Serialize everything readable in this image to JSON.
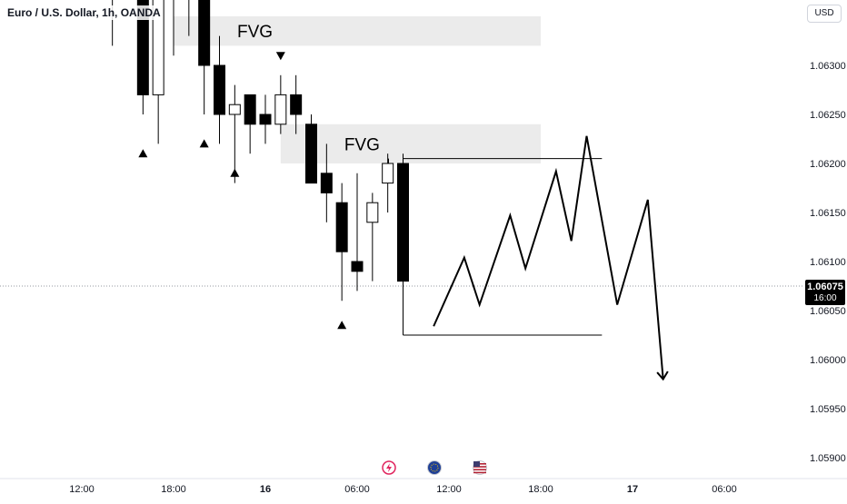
{
  "header": {
    "symbol": "Euro / U.S. Dollar, 1h, OANDA",
    "currency_button": "USD"
  },
  "price_badge": {
    "price": "1.06075",
    "time": "16:00"
  },
  "event_icons": [
    {
      "name": "lightning-icon",
      "color": "#e0245e"
    },
    {
      "name": "eu-flag-icon",
      "color": "#1e3f96"
    },
    {
      "name": "us-flag-icon",
      "color": "#b22234"
    }
  ],
  "chart_data": {
    "type": "candlestick",
    "ylim": [
      1.0588,
      1.0643
    ],
    "y_ticks": [
      "1.06300",
      "1.06250",
      "1.06200",
      "1.06150",
      "1.06100",
      "1.06050",
      "1.06000",
      "1.05950",
      "1.05900"
    ],
    "y_tick_values": [
      1.063,
      1.0625,
      1.062,
      1.0615,
      1.061,
      1.0605,
      1.06,
      1.0595,
      1.059
    ],
    "x_ticks": [
      {
        "label": "12:00",
        "hour": 12,
        "bold": false
      },
      {
        "label": "18:00",
        "hour": 18,
        "bold": false
      },
      {
        "label": "16",
        "hour": 24,
        "bold": true
      },
      {
        "label": "06:00",
        "hour": 30,
        "bold": false
      },
      {
        "label": "12:00",
        "hour": 36,
        "bold": false
      },
      {
        "label": "18:00",
        "hour": 42,
        "bold": false
      },
      {
        "label": "17",
        "hour": 48,
        "bold": true
      },
      {
        "label": "06:00",
        "hour": 54,
        "bold": false
      }
    ],
    "candles": [
      {
        "hour": 14,
        "open": 1.0643,
        "high": 1.0643,
        "low": 1.0632,
        "close": 1.0643
      },
      {
        "hour": 16,
        "open": 1.0643,
        "high": 1.0643,
        "low": 1.0625,
        "close": 1.0627
      },
      {
        "hour": 17,
        "open": 1.0627,
        "high": 1.0643,
        "low": 1.0622,
        "close": 1.0643
      },
      {
        "hour": 18,
        "open": 1.0643,
        "high": 1.0643,
        "low": 1.0631,
        "close": 1.0642
      },
      {
        "hour": 19,
        "open": 1.0643,
        "high": 1.0643,
        "low": 1.0633,
        "close": 1.0643
      },
      {
        "hour": 20,
        "open": 1.0643,
        "high": 1.0643,
        "low": 1.0625,
        "close": 1.063
      },
      {
        "hour": 21,
        "open": 1.063,
        "high": 1.0633,
        "low": 1.0622,
        "close": 1.0625
      },
      {
        "hour": 22,
        "open": 1.0625,
        "high": 1.0628,
        "low": 1.0618,
        "close": 1.0626
      },
      {
        "hour": 23,
        "open": 1.0627,
        "high": 1.0627,
        "low": 1.0621,
        "close": 1.0624
      },
      {
        "hour": 24,
        "open": 1.0625,
        "high": 1.0627,
        "low": 1.0622,
        "close": 1.0624
      },
      {
        "hour": 25,
        "open": 1.0624,
        "high": 1.0629,
        "low": 1.0623,
        "close": 1.0627
      },
      {
        "hour": 26,
        "open": 1.0627,
        "high": 1.0629,
        "low": 1.0623,
        "close": 1.0625
      },
      {
        "hour": 27,
        "open": 1.0624,
        "high": 1.0625,
        "low": 1.0618,
        "close": 1.0618
      },
      {
        "hour": 28,
        "open": 1.0619,
        "high": 1.0622,
        "low": 1.0614,
        "close": 1.0617
      },
      {
        "hour": 29,
        "open": 1.0616,
        "high": 1.0618,
        "low": 1.0606,
        "close": 1.0611
      },
      {
        "hour": 30,
        "open": 1.061,
        "high": 1.0619,
        "low": 1.0607,
        "close": 1.0609
      },
      {
        "hour": 31,
        "open": 1.0614,
        "high": 1.0617,
        "low": 1.0608,
        "close": 1.0616
      },
      {
        "hour": 32,
        "open": 1.0618,
        "high": 1.0621,
        "low": 1.0615,
        "close": 1.062
      },
      {
        "hour": 33,
        "open": 1.062,
        "high": 1.0621,
        "low": 1.0608,
        "close": 1.0608
      }
    ],
    "fvg_zones": [
      {
        "label": "FVG",
        "x_start_hour": 18,
        "x_end_hour": 42,
        "y_top": 1.0635,
        "y_bottom": 1.0632
      },
      {
        "label": "FVG",
        "x_start_hour": 25,
        "x_end_hour": 42,
        "y_top": 1.0624,
        "y_bottom": 1.062
      }
    ],
    "markers": [
      {
        "hour": 16,
        "price": 1.0632,
        "direction": "up"
      },
      {
        "hour": 16,
        "price": 1.0621,
        "direction": "up"
      },
      {
        "hour": 20,
        "price": 1.0622,
        "direction": "up"
      },
      {
        "hour": 22,
        "price": 1.0619,
        "direction": "up"
      },
      {
        "hour": 25,
        "price": 1.0631,
        "direction": "down"
      },
      {
        "hour": 29,
        "price": 1.06035,
        "direction": "up"
      }
    ],
    "level_lines": [
      {
        "x_start_hour": 33,
        "x_end_hour": 46,
        "price": 1.06205
      },
      {
        "x_start_hour": 33,
        "x_end_hour": 46,
        "price": 1.06025
      }
    ],
    "projection_path": [
      {
        "hour": 35,
        "price": 1.06034
      },
      {
        "hour": 37,
        "price": 1.06104
      },
      {
        "hour": 38,
        "price": 1.06056
      },
      {
        "hour": 40,
        "price": 1.06147
      },
      {
        "hour": 41,
        "price": 1.06093
      },
      {
        "hour": 43,
        "price": 1.06192
      },
      {
        "hour": 44,
        "price": 1.06121
      },
      {
        "hour": 45,
        "price": 1.06228
      },
      {
        "hour": 47,
        "price": 1.06056
      },
      {
        "hour": 49,
        "price": 1.06163
      },
      {
        "hour": 50,
        "price": 1.0598
      }
    ],
    "last_price": 1.06075,
    "candle_up_color": "#ffffff",
    "candle_down_color": "#000000",
    "fvg_color": "#ebebeb",
    "price_badge_color": "#000000"
  }
}
